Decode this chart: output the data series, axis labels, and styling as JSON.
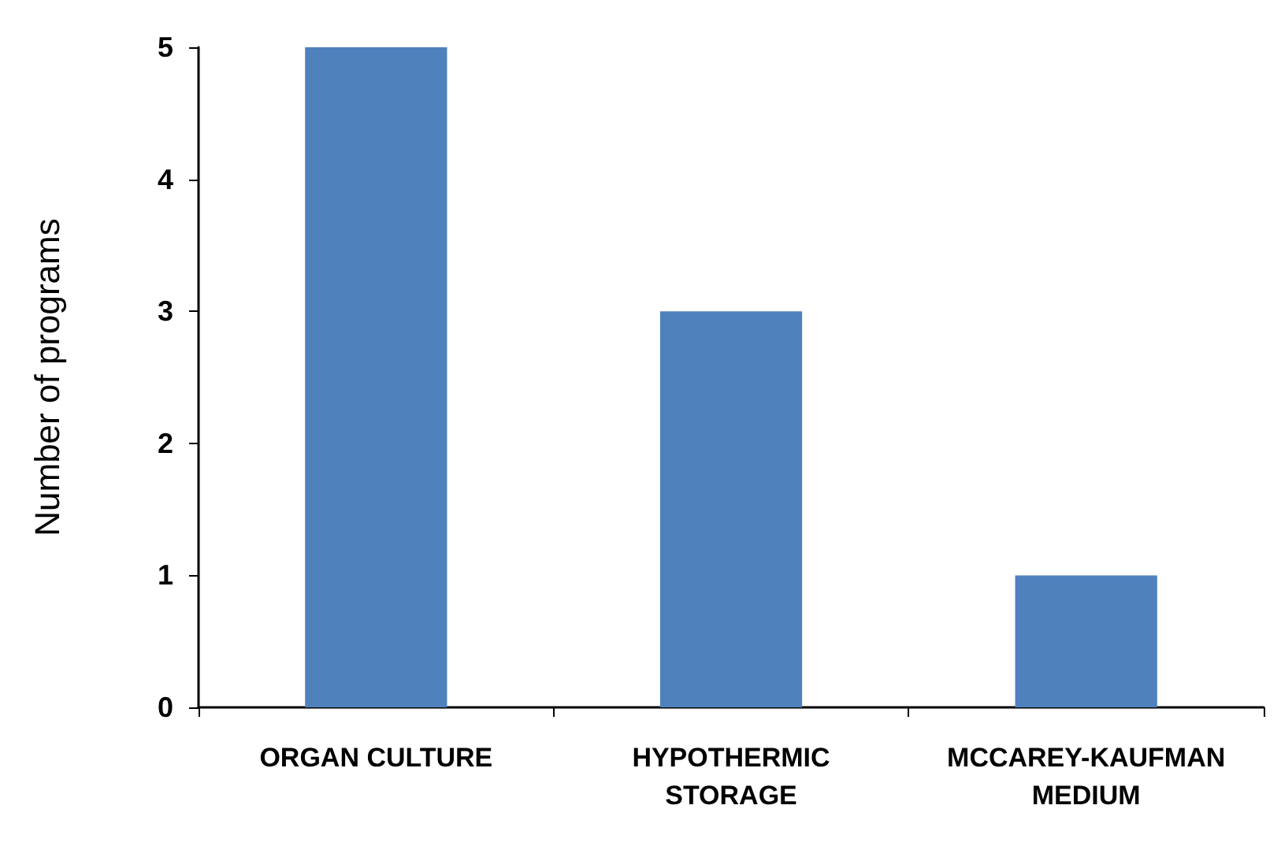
{
  "chart_data": {
    "type": "bar",
    "ylabel": "Number of programs",
    "categories": [
      "ORGAN CULTURE",
      "HYPOTHERMIC\nSTORAGE",
      "MCCAREY-KAUFMAN\nMEDIUM"
    ],
    "values": [
      5,
      3,
      1
    ],
    "color": "#4f81bd",
    "ylim": [
      0,
      5
    ],
    "yticks": [
      0,
      1,
      2,
      3,
      4,
      5
    ],
    "grid": false
  }
}
